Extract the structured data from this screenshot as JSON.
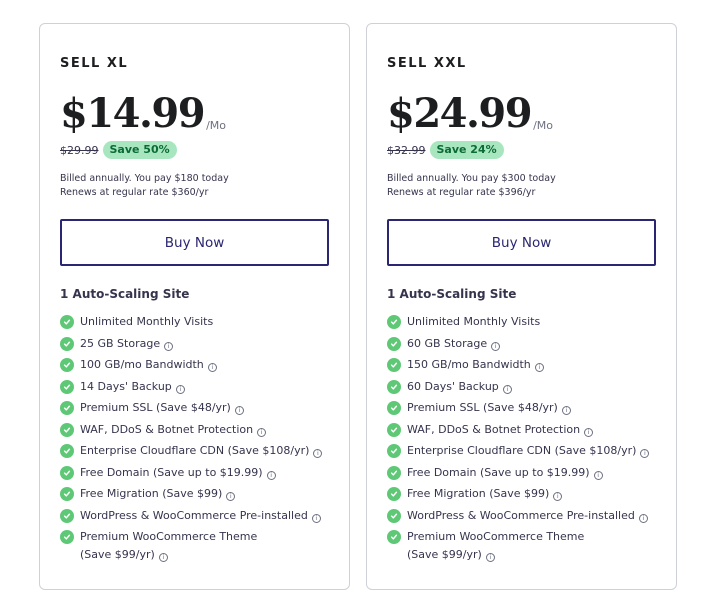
{
  "plans": [
    {
      "name": "SELL XL",
      "price": "$14.99",
      "price_unit": "/Mo",
      "old_price": "$29.99",
      "save_label": "Save 50%",
      "billing_line_1": "Billed annually. You pay $180 today",
      "billing_line_2": "Renews at regular rate $360/yr",
      "button_label": "Buy Now",
      "sites": "1 Auto-Scaling Site",
      "features": [
        {
          "text": "Unlimited Monthly Visits",
          "info": false
        },
        {
          "text": "25 GB Storage",
          "info": true
        },
        {
          "text": "100 GB/mo Bandwidth",
          "info": true
        },
        {
          "text": "14 Days' Backup",
          "info": true
        },
        {
          "text": "Premium SSL (Save $48/yr)",
          "info": true
        },
        {
          "text": "WAF, DDoS & Botnet Protection",
          "info": true
        },
        {
          "text": "Enterprise Cloudflare CDN (Save $108/yr)",
          "info": true
        },
        {
          "text": "Free Domain (Save up to $19.99)",
          "info": true
        },
        {
          "text": "Free Migration (Save $99)",
          "info": true
        },
        {
          "text": "WordPress & WooCommerce Pre-installed",
          "info": true
        },
        {
          "text": "Premium WooCommerce Theme",
          "text2": "(Save $99/yr)",
          "info": true
        }
      ]
    },
    {
      "name": "SELL XXL",
      "price": "$24.99",
      "price_unit": "/Mo",
      "old_price": "$32.99",
      "save_label": "Save 24%",
      "billing_line_1": "Billed annually. You pay $300 today",
      "billing_line_2": "Renews at regular rate $396/yr",
      "button_label": "Buy Now",
      "sites": "1 Auto-Scaling Site",
      "features": [
        {
          "text": "Unlimited Monthly Visits",
          "info": false
        },
        {
          "text": "60 GB Storage",
          "info": true
        },
        {
          "text": "150 GB/mo Bandwidth",
          "info": true
        },
        {
          "text": "60 Days' Backup",
          "info": true
        },
        {
          "text": "Premium SSL (Save $48/yr)",
          "info": true
        },
        {
          "text": "WAF, DDoS & Botnet Protection",
          "info": true
        },
        {
          "text": "Enterprise Cloudflare CDN (Save $108/yr)",
          "info": true
        },
        {
          "text": "Free Domain (Save up to $19.99)",
          "info": true
        },
        {
          "text": "Free Migration (Save $99)",
          "info": true
        },
        {
          "text": "WordPress & WooCommerce Pre-installed",
          "info": true
        },
        {
          "text": "Premium WooCommerce Theme",
          "text2": "(Save $99/yr)",
          "info": true
        }
      ]
    }
  ],
  "icons": {
    "check": "check-circle-icon",
    "info": "info-icon"
  },
  "colors": {
    "accent": "#2a2671",
    "check": "#5fc876",
    "badge_bg": "#a8e6c0",
    "badge_text": "#0b6b36"
  }
}
